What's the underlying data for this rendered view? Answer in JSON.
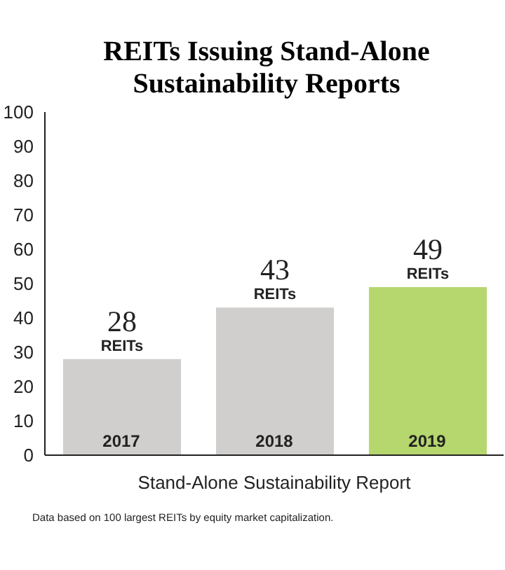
{
  "chart_data": {
    "type": "bar",
    "title": "REITs Issuing Stand-Alone Sustainability Reports",
    "xlabel": "Stand-Alone Sustainability Report",
    "categories": [
      "2017",
      "2018",
      "2019"
    ],
    "values": [
      28,
      43,
      49
    ],
    "colors": [
      "#d0cfcd",
      "#d0cfcd",
      "#b6d66e"
    ],
    "value_labels": [
      "28 REITs",
      "43 REITs",
      "49 REITs"
    ],
    "ylim": [
      0,
      100
    ],
    "yticks": [
      0,
      10,
      20,
      30,
      40,
      50,
      60,
      70,
      80,
      90,
      100
    ],
    "grid": false,
    "annotations": [
      "Data based on 100 largest REITs by equity market capitalization."
    ]
  }
}
